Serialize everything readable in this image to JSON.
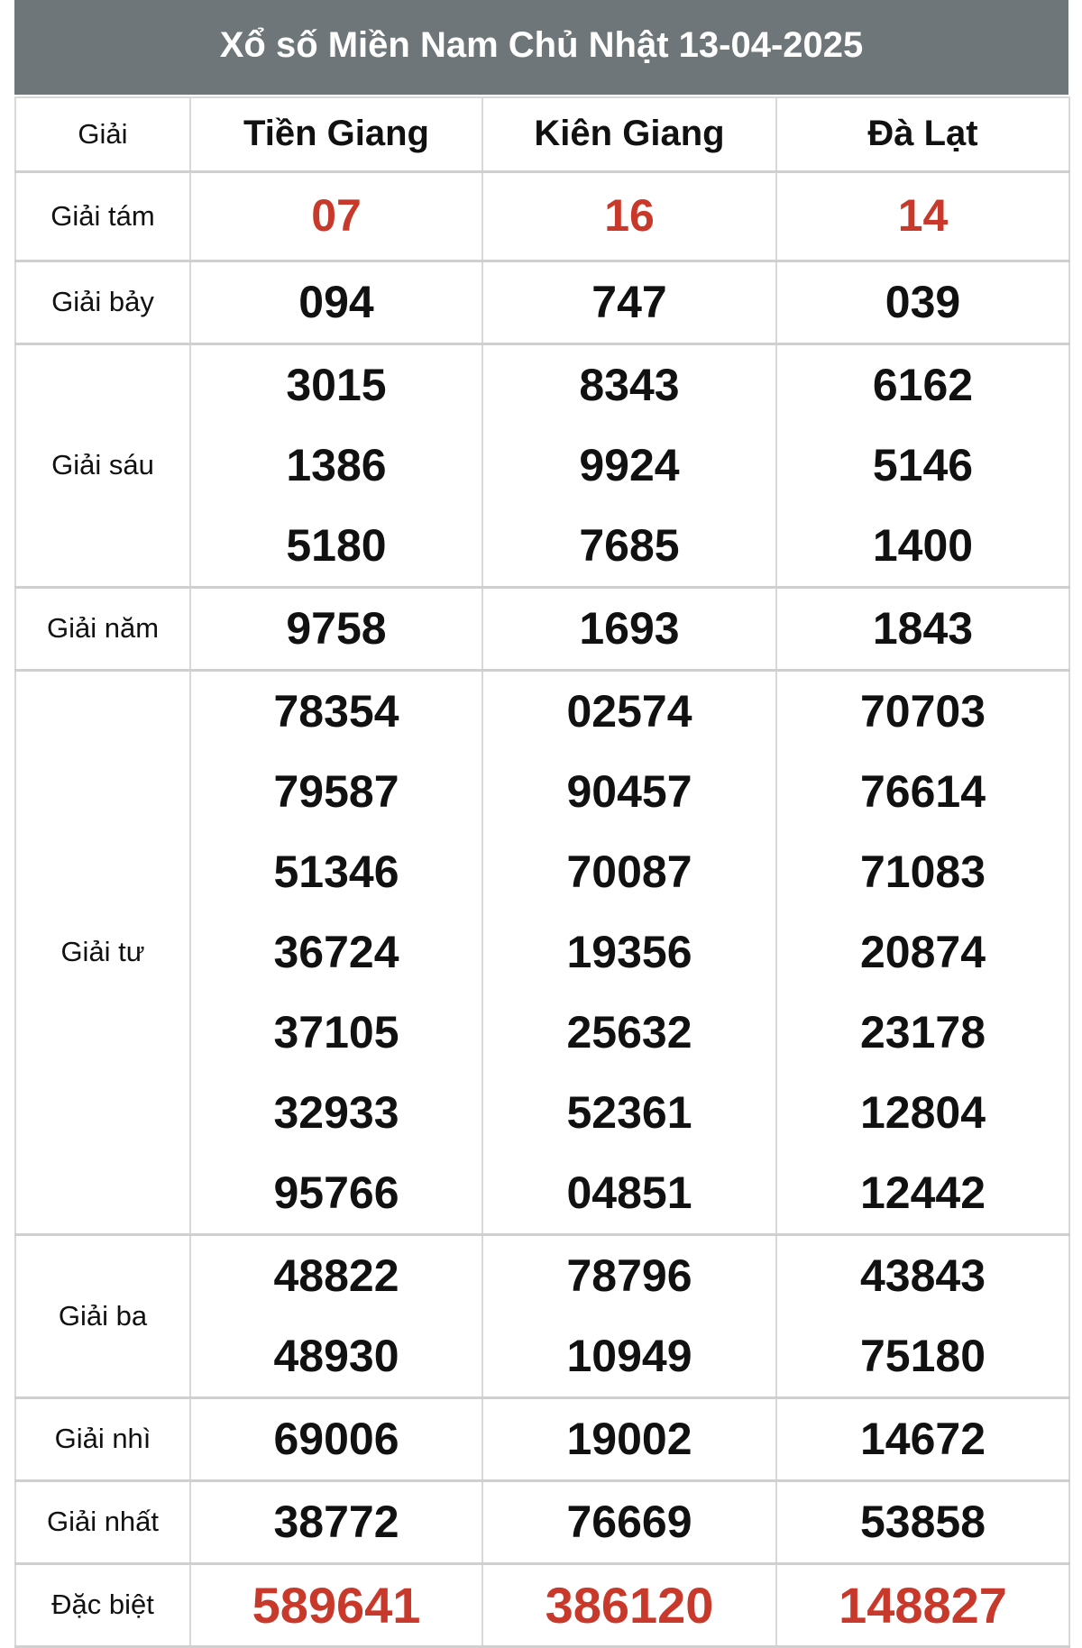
{
  "title": "Xổ số Miền Nam Chủ Nhật 13-04-2025",
  "accent_color": "#c9392b",
  "header": {
    "label": "Giải",
    "provinces": [
      "Tiền Giang",
      "Kiên Giang",
      "Đà Lạt"
    ]
  },
  "rows": [
    {
      "label": "Giải tám",
      "red": true,
      "values": [
        [
          "07"
        ],
        [
          "16"
        ],
        [
          "14"
        ]
      ]
    },
    {
      "label": "Giải bảy",
      "values": [
        [
          "094"
        ],
        [
          "747"
        ],
        [
          "039"
        ]
      ]
    },
    {
      "label": "Giải sáu",
      "values": [
        [
          "3015",
          "1386",
          "5180"
        ],
        [
          "8343",
          "9924",
          "7685"
        ],
        [
          "6162",
          "5146",
          "1400"
        ]
      ]
    },
    {
      "label": "Giải năm",
      "values": [
        [
          "9758"
        ],
        [
          "1693"
        ],
        [
          "1843"
        ]
      ]
    },
    {
      "label": "Giải tư",
      "values": [
        [
          "78354",
          "79587",
          "51346",
          "36724",
          "37105",
          "32933",
          "95766"
        ],
        [
          "02574",
          "90457",
          "70087",
          "19356",
          "25632",
          "52361",
          "04851"
        ],
        [
          "70703",
          "76614",
          "71083",
          "20874",
          "23178",
          "12804",
          "12442"
        ]
      ]
    },
    {
      "label": "Giải ba",
      "values": [
        [
          "48822",
          "48930"
        ],
        [
          "78796",
          "10949"
        ],
        [
          "43843",
          "75180"
        ]
      ]
    },
    {
      "label": "Giải nhì",
      "values": [
        [
          "69006"
        ],
        [
          "19002"
        ],
        [
          "14672"
        ]
      ]
    },
    {
      "label": "Giải nhất",
      "values": [
        [
          "38772"
        ],
        [
          "76669"
        ],
        [
          "53858"
        ]
      ]
    },
    {
      "label": "Đặc biệt",
      "red": true,
      "big": true,
      "values": [
        [
          "589641"
        ],
        [
          "386120"
        ],
        [
          "148827"
        ]
      ]
    }
  ]
}
